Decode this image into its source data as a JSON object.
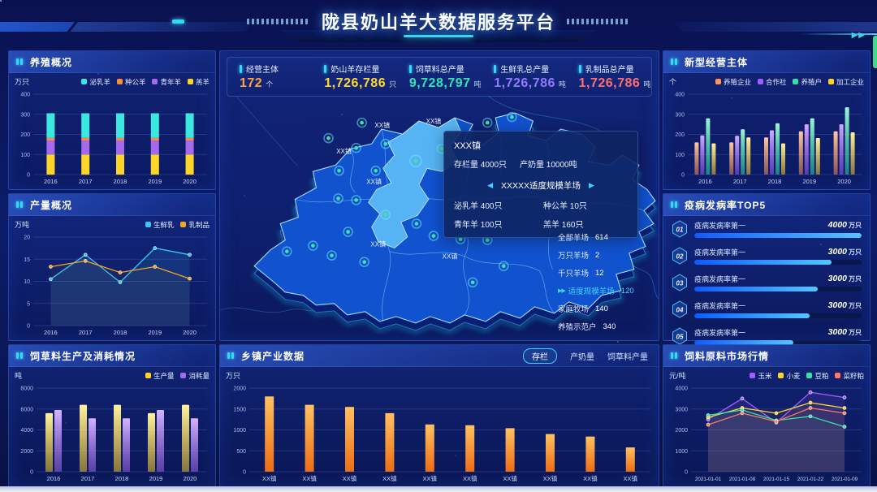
{
  "header": {
    "title": "陇县奶山羊大数据服务平台"
  },
  "icons": {
    "double_arrow": "▶▶",
    "arrow_left": "◀",
    "arrow_right": "▶",
    "panel_marker": "▮▮"
  },
  "stats": {
    "items": [
      {
        "label": "经营主体",
        "value": "172",
        "unit": "个",
        "color": "#ffa43d"
      },
      {
        "label": "奶山羊存栏量",
        "value": "1,726,786",
        "unit": "只",
        "color": "#ffd92e"
      },
      {
        "label": "饲草料总产量",
        "value": "9,728,797",
        "unit": "吨",
        "color": "#2ee6b4"
      },
      {
        "label": "生鲜乳总产量",
        "value": "1,726,786",
        "unit": "吨",
        "color": "#8f7bff"
      },
      {
        "label": "乳制品总产量",
        "value": "1,726,786",
        "unit": "吨",
        "color": "#ff6e6e"
      }
    ]
  },
  "panels": {
    "breeding": {
      "title": "养殖概况"
    },
    "production": {
      "title": "产量概况"
    },
    "forage": {
      "title": "饲草料生产及消耗情况"
    },
    "township": {
      "title": "乡镇产业数据",
      "tabs": [
        {
          "label": "存栏",
          "active": true
        },
        {
          "label": "产奶量",
          "active": false
        },
        {
          "label": "饲草料产量",
          "active": false
        }
      ]
    },
    "entities": {
      "title": "新型经营主体"
    },
    "disease": {
      "title": "疫病发病率TOP5"
    },
    "market": {
      "title": "饲料原料市场行情"
    }
  },
  "map": {
    "town_label": "XX镇",
    "tooltip": {
      "town": "XXX镇",
      "rows": [
        {
          "label": "存栏量",
          "value": "4000只"
        },
        {
          "label": "产奶量",
          "value": "10000吨"
        }
      ],
      "farm_title": "XXXXX适度规模羊场",
      "stats": [
        {
          "label": "泌乳羊",
          "value": "400只"
        },
        {
          "label": "种公羊",
          "value": "10只"
        },
        {
          "label": "青年羊",
          "value": "100只"
        },
        {
          "label": "羔羊",
          "value": "160只"
        }
      ]
    },
    "farm_list": [
      {
        "label": "全部羊场",
        "value": "614",
        "highlight": false
      },
      {
        "label": "万只羊场",
        "value": "2",
        "highlight": false
      },
      {
        "label": "千只羊场",
        "value": "12",
        "highlight": false
      },
      {
        "label": "适度规模羊场",
        "value": "120",
        "highlight": true
      },
      {
        "label": "家庭牧场",
        "value": "140",
        "highlight": false
      },
      {
        "label": "养殖示范户",
        "value": "340",
        "highlight": false
      }
    ]
  },
  "top5": {
    "items": [
      {
        "rank": "01",
        "label": "疫病发病率第一",
        "value": "4000",
        "unit": "万只",
        "pct": 100
      },
      {
        "rank": "02",
        "label": "疫病发病率第一",
        "value": "3000",
        "unit": "万只",
        "pct": 82
      },
      {
        "rank": "03",
        "label": "疫病发病率第一",
        "value": "3000",
        "unit": "万只",
        "pct": 74
      },
      {
        "rank": "04",
        "label": "疫病发病率第一",
        "value": "3000",
        "unit": "万只",
        "pct": 69
      },
      {
        "rank": "05",
        "label": "疫病发病率第一",
        "value": "3000",
        "unit": "万只",
        "pct": 59
      }
    ]
  },
  "chart_data": [
    {
      "id": "breeding",
      "type": "stacked-bar",
      "title": "养殖概况",
      "unit": "万只",
      "categories": [
        "2016",
        "2017",
        "2018",
        "2019",
        "2020"
      ],
      "series": [
        {
          "name": "羔羊",
          "color": "#ffd428",
          "values": [
            100,
            100,
            100,
            100,
            100
          ]
        },
        {
          "name": "青年羊",
          "color": "#a569f0",
          "values": [
            70,
            70,
            70,
            70,
            70
          ]
        },
        {
          "name": "种公羊",
          "color": "#ff8a3c",
          "values": [
            12,
            12,
            12,
            12,
            12
          ]
        },
        {
          "name": "泌乳羊",
          "color": "#3ae8e0",
          "values": [
            123,
            123,
            123,
            123,
            123
          ]
        }
      ],
      "legend": [
        {
          "label": "泌乳羊",
          "color": "#3ae8e0"
        },
        {
          "label": "种公羊",
          "color": "#ff8a3c"
        },
        {
          "label": "青年羊",
          "color": "#a569f0"
        },
        {
          "label": "羔羊",
          "color": "#ffd428"
        }
      ],
      "ylim": [
        0,
        400
      ],
      "yticks": [
        0,
        100,
        200,
        300,
        400
      ],
      "bw": 10,
      "ml": 26
    },
    {
      "id": "production",
      "type": "line",
      "title": "产量概况",
      "unit": "万吨",
      "categories": [
        "2016",
        "2017",
        "2018",
        "2019",
        "2020"
      ],
      "series": [
        {
          "name": "生鲜乳",
          "color": "#38c8f0",
          "values": [
            10.5,
            16,
            9.8,
            17.5,
            16
          ],
          "area_opacity": 0.12
        },
        {
          "name": "乳制品",
          "color": "#f5a623",
          "values": [
            13.3,
            14.6,
            12,
            13.3,
            10.6
          ],
          "area_opacity": 0.05
        }
      ],
      "legend": [
        {
          "label": "生鲜乳",
          "color": "#38c8f0"
        },
        {
          "label": "乳制品",
          "color": "#f5a623"
        }
      ],
      "ylim": [
        0,
        20
      ],
      "yticks": [
        0,
        5,
        10,
        15,
        20
      ],
      "ml": 26
    },
    {
      "id": "forage",
      "type": "grouped-bar",
      "title": "饲草料生产及消耗情况",
      "unit": "吨",
      "categories": [
        "2016",
        "2017",
        "2018",
        "2019",
        "2020"
      ],
      "series": [
        {
          "name": "生产量",
          "color": "#ffd428",
          "color2": "#fff3a0",
          "values": [
            5600,
            6400,
            6400,
            5600,
            6400
          ]
        },
        {
          "name": "消耗量",
          "color": "#a569f0",
          "color2": "#d3b4ff",
          "values": [
            5900,
            5100,
            5100,
            5900,
            5100
          ]
        }
      ],
      "legend": [
        {
          "label": "生产量",
          "color": "#ffd428"
        },
        {
          "label": "消耗量",
          "color": "#a569f0"
        }
      ],
      "ylim": [
        0,
        8000
      ],
      "yticks": [
        0,
        2000,
        4000,
        6000,
        8000
      ],
      "bw": 9,
      "ml": 30
    },
    {
      "id": "township",
      "type": "bar",
      "title": "乡镇产业数据",
      "unit": "万只",
      "categories": [
        "XX镇",
        "XX镇",
        "XX镇",
        "XX镇",
        "XX镇",
        "XX镇",
        "XX镇",
        "XX镇",
        "XX镇",
        "XX镇"
      ],
      "values": [
        1800,
        1600,
        1550,
        1400,
        1130,
        1110,
        1040,
        900,
        840,
        580
      ],
      "gradient": [
        "#ffc163",
        "#ed6d15"
      ],
      "ylim": [
        0,
        2000
      ],
      "yticks": [
        0,
        500,
        1000,
        1500,
        2000
      ],
      "bw": 11,
      "ml": 32
    },
    {
      "id": "entities",
      "type": "grouped-bar",
      "title": "新型经营主体",
      "unit": "个",
      "categories": [
        "2016",
        "2017",
        "2018",
        "2019",
        "2020"
      ],
      "series": [
        {
          "name": "养殖企业",
          "color": "#ff9455",
          "color2": "#ffc9a0",
          "values": [
            160,
            160,
            185,
            215,
            215
          ]
        },
        {
          "name": "合作社",
          "color": "#a35cff",
          "color2": "#d0aaff",
          "values": [
            195,
            193,
            220,
            250,
            250
          ]
        },
        {
          "name": "养殖户",
          "color": "#2ee6a8",
          "color2": "#9cf5d6",
          "values": [
            280,
            225,
            255,
            280,
            335
          ]
        },
        {
          "name": "加工企业",
          "color": "#ffd428",
          "color2": "#fff0a0",
          "values": [
            155,
            185,
            155,
            182,
            210
          ]
        }
      ],
      "legend": [
        {
          "label": "养殖企业",
          "color": "#ff9455"
        },
        {
          "label": "合作社",
          "color": "#a35cff"
        },
        {
          "label": "养殖户",
          "color": "#2ee6a8"
        },
        {
          "label": "加工企业",
          "color": "#ffd428"
        }
      ],
      "ylim": [
        0,
        400
      ],
      "yticks": [
        0,
        100,
        200,
        300,
        400
      ],
      "bw": 5,
      "ml": 26
    },
    {
      "id": "market",
      "type": "line",
      "title": "饲料原料市场行情",
      "unit": "元/吨",
      "categories": [
        "2021-01-01",
        "2021-01-08",
        "2021-01-15",
        "2021-01-22",
        "2021-01-09"
      ],
      "series": [
        {
          "name": "玉米",
          "color": "#a35cff",
          "values": [
            2500,
            3500,
            2350,
            3800,
            3550
          ],
          "area_opacity": 0.12
        },
        {
          "name": "小麦",
          "color": "#ffd428",
          "values": [
            2600,
            3050,
            2800,
            3300,
            3050
          ],
          "area_opacity": 0.06
        },
        {
          "name": "豆粕",
          "color": "#2ee6a8",
          "values": [
            2700,
            2950,
            2450,
            2650,
            2150
          ],
          "area_opacity": 0.06
        },
        {
          "name": "菜籽粕",
          "color": "#ff7a5c",
          "values": [
            2250,
            2800,
            2400,
            3050,
            2800
          ],
          "area_opacity": 0.06
        }
      ],
      "legend": [
        {
          "label": "玉米",
          "color": "#a35cff"
        },
        {
          "label": "小麦",
          "color": "#ffd428"
        },
        {
          "label": "豆粕",
          "color": "#2ee6a8"
        },
        {
          "label": "菜籽粕",
          "color": "#ff7a5c"
        }
      ],
      "ylim": [
        0,
        4000
      ],
      "yticks": [
        0,
        1000,
        2000,
        3000,
        4000
      ],
      "ml": 30,
      "x_font": 6.3
    }
  ]
}
